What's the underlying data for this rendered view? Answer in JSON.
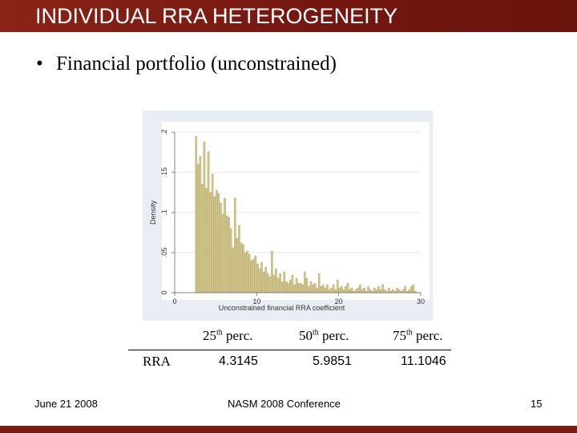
{
  "slide": {
    "title": "INDIVIDUAL RRA HETEROGENEITY",
    "bullet_marker": "•",
    "bullet_text": "Financial portfolio (unconstrained)",
    "footer_left": "June 21 2008",
    "footer_center": "NASM 2008 Conference",
    "footer_right": "15",
    "colors": {
      "title_bar": "#7a1c14",
      "bar_fill": "#cfc48a",
      "bar_stroke": "#a89a5a",
      "chart_bg": "#e8eef3"
    }
  },
  "table": {
    "row_label": "RRA",
    "headers": [
      {
        "base": "25",
        "sup": "th",
        "rest": " perc."
      },
      {
        "base": "50",
        "sup": "th",
        "rest": " perc."
      },
      {
        "base": "75",
        "sup": "th",
        "rest": " perc."
      }
    ],
    "values": [
      "4.3145",
      "5.9851",
      "11.1046"
    ]
  },
  "chart_data": {
    "type": "bar",
    "title": "",
    "xlabel": "Unconstrained financial RRA coefficient",
    "ylabel": "Density",
    "xlim": [
      0,
      30
    ],
    "ylim": [
      0,
      0.2
    ],
    "xticks": [
      "0",
      "10",
      "20",
      "30"
    ],
    "yticks": [
      "0",
      ".05",
      ".1",
      ".15",
      ".2"
    ],
    "bin_width": 0.25,
    "bins": [
      {
        "x": 2.5,
        "y": 0.195
      },
      {
        "x": 2.75,
        "y": 0.16
      },
      {
        "x": 3.0,
        "y": 0.17
      },
      {
        "x": 3.25,
        "y": 0.135
      },
      {
        "x": 3.5,
        "y": 0.188
      },
      {
        "x": 3.75,
        "y": 0.13
      },
      {
        "x": 4.0,
        "y": 0.176
      },
      {
        "x": 4.25,
        "y": 0.125
      },
      {
        "x": 4.5,
        "y": 0.148
      },
      {
        "x": 4.75,
        "y": 0.12
      },
      {
        "x": 5.0,
        "y": 0.128
      },
      {
        "x": 5.25,
        "y": 0.124
      },
      {
        "x": 5.5,
        "y": 0.112
      },
      {
        "x": 5.75,
        "y": 0.098
      },
      {
        "x": 6.0,
        "y": 0.118
      },
      {
        "x": 6.25,
        "y": 0.096
      },
      {
        "x": 6.5,
        "y": 0.094
      },
      {
        "x": 6.75,
        "y": 0.08
      },
      {
        "x": 7.0,
        "y": 0.056
      },
      {
        "x": 7.25,
        "y": 0.118
      },
      {
        "x": 7.5,
        "y": 0.068
      },
      {
        "x": 7.75,
        "y": 0.084
      },
      {
        "x": 8.0,
        "y": 0.062
      },
      {
        "x": 8.25,
        "y": 0.06
      },
      {
        "x": 8.5,
        "y": 0.05
      },
      {
        "x": 8.75,
        "y": 0.052
      },
      {
        "x": 9.0,
        "y": 0.048
      },
      {
        "x": 9.25,
        "y": 0.04
      },
      {
        "x": 9.5,
        "y": 0.042
      },
      {
        "x": 9.75,
        "y": 0.046
      },
      {
        "x": 10.0,
        "y": 0.036
      },
      {
        "x": 10.25,
        "y": 0.03
      },
      {
        "x": 10.5,
        "y": 0.038
      },
      {
        "x": 10.75,
        "y": 0.026
      },
      {
        "x": 11.0,
        "y": 0.032
      },
      {
        "x": 11.25,
        "y": 0.024
      },
      {
        "x": 11.5,
        "y": 0.02
      },
      {
        "x": 11.75,
        "y": 0.052
      },
      {
        "x": 12.0,
        "y": 0.022
      },
      {
        "x": 12.25,
        "y": 0.03
      },
      {
        "x": 12.5,
        "y": 0.018
      },
      {
        "x": 12.75,
        "y": 0.024
      },
      {
        "x": 13.0,
        "y": 0.014
      },
      {
        "x": 13.25,
        "y": 0.026
      },
      {
        "x": 13.5,
        "y": 0.014
      },
      {
        "x": 13.75,
        "y": 0.012
      },
      {
        "x": 14.0,
        "y": 0.016
      },
      {
        "x": 14.25,
        "y": 0.022
      },
      {
        "x": 14.5,
        "y": 0.01
      },
      {
        "x": 14.75,
        "y": 0.018
      },
      {
        "x": 15.0,
        "y": 0.012
      },
      {
        "x": 15.25,
        "y": 0.012
      },
      {
        "x": 15.5,
        "y": 0.01
      },
      {
        "x": 15.75,
        "y": 0.026
      },
      {
        "x": 16.0,
        "y": 0.018
      },
      {
        "x": 16.25,
        "y": 0.008
      },
      {
        "x": 16.5,
        "y": 0.014
      },
      {
        "x": 16.75,
        "y": 0.01
      },
      {
        "x": 17.0,
        "y": 0.012
      },
      {
        "x": 17.25,
        "y": 0.006
      },
      {
        "x": 17.5,
        "y": 0.024
      },
      {
        "x": 17.75,
        "y": 0.008
      },
      {
        "x": 18.0,
        "y": 0.01
      },
      {
        "x": 18.25,
        "y": 0.006
      },
      {
        "x": 18.5,
        "y": 0.01
      },
      {
        "x": 18.75,
        "y": 0.004
      },
      {
        "x": 19.0,
        "y": 0.006
      },
      {
        "x": 19.25,
        "y": 0.01
      },
      {
        "x": 19.5,
        "y": 0.004
      },
      {
        "x": 19.75,
        "y": 0.016
      },
      {
        "x": 20.0,
        "y": 0.006
      },
      {
        "x": 20.25,
        "y": 0.008
      },
      {
        "x": 20.5,
        "y": 0.004
      },
      {
        "x": 20.75,
        "y": 0.008
      },
      {
        "x": 21.0,
        "y": 0.012
      },
      {
        "x": 21.25,
        "y": 0.004
      },
      {
        "x": 21.5,
        "y": 0.006
      },
      {
        "x": 21.75,
        "y": 0.002
      },
      {
        "x": 22.0,
        "y": 0.004
      },
      {
        "x": 22.25,
        "y": 0.006
      },
      {
        "x": 22.5,
        "y": 0.01
      },
      {
        "x": 22.75,
        "y": 0.004
      },
      {
        "x": 23.0,
        "y": 0.006
      },
      {
        "x": 23.25,
        "y": 0.002
      },
      {
        "x": 23.5,
        "y": 0.008
      },
      {
        "x": 23.75,
        "y": 0.004
      },
      {
        "x": 24.0,
        "y": 0.002
      },
      {
        "x": 24.25,
        "y": 0.006
      },
      {
        "x": 24.5,
        "y": 0.004
      },
      {
        "x": 24.75,
        "y": 0.008
      },
      {
        "x": 25.0,
        "y": 0.004
      },
      {
        "x": 25.25,
        "y": 0.01
      },
      {
        "x": 25.5,
        "y": 0.004
      },
      {
        "x": 25.75,
        "y": 0.002
      },
      {
        "x": 26.0,
        "y": 0.006
      },
      {
        "x": 26.25,
        "y": 0.002
      },
      {
        "x": 26.5,
        "y": 0.004
      },
      {
        "x": 26.75,
        "y": 0.002
      },
      {
        "x": 27.0,
        "y": 0.006
      },
      {
        "x": 27.25,
        "y": 0.004
      },
      {
        "x": 27.5,
        "y": 0.002
      },
      {
        "x": 27.75,
        "y": 0.004
      },
      {
        "x": 28.0,
        "y": 0.008
      },
      {
        "x": 28.25,
        "y": 0.002
      },
      {
        "x": 28.5,
        "y": 0.004
      },
      {
        "x": 28.75,
        "y": 0.008
      },
      {
        "x": 29.0,
        "y": 0.01
      },
      {
        "x": 29.25,
        "y": 0.002
      }
    ],
    "grid": true,
    "legend": "none"
  }
}
